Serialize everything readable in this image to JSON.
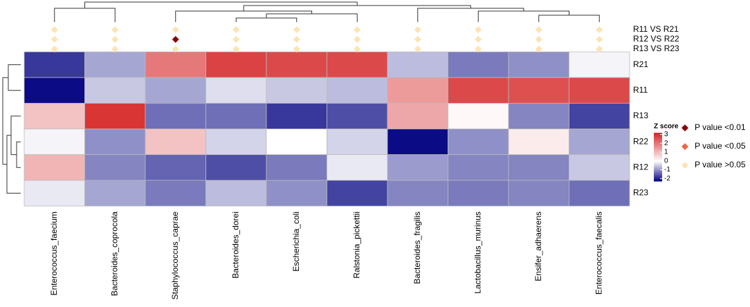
{
  "chart_data": {
    "type": "heatmap",
    "columns": [
      "Enterococcus_faecium",
      "Bacteroides_coprocola",
      "Staphylococcus_caprae",
      "Bacteroides_dorei",
      "Escherichia_coli",
      "Ralstonia_pickettii",
      "Bacteroides_fragilis",
      "Lactobacillus_murinus",
      "Ensifer_adhaerens",
      "Enterococcus_faecalis"
    ],
    "rows": [
      "R21",
      "R11",
      "R13",
      "R22",
      "R12",
      "R23"
    ],
    "z": [
      [
        -1.8,
        -0.8,
        2.0,
        2.8,
        2.7,
        2.7,
        -0.6,
        -1.2,
        -1.0,
        -0.1
      ],
      [
        -2.2,
        -0.5,
        -0.8,
        -0.3,
        -0.5,
        -0.6,
        1.5,
        2.7,
        2.6,
        2.7
      ],
      [
        0.9,
        3.0,
        -1.3,
        -1.3,
        -1.8,
        -1.6,
        1.3,
        0.1,
        -1.1,
        -1.7
      ],
      [
        -0.1,
        -1.0,
        0.9,
        -0.4,
        0.0,
        -0.4,
        -2.2,
        -1.0,
        0.3,
        -0.8
      ],
      [
        1.1,
        -1.1,
        -1.4,
        -1.6,
        -1.2,
        -0.2,
        -0.9,
        -1.1,
        -1.1,
        -0.5
      ],
      [
        -0.2,
        -0.8,
        -1.2,
        -0.6,
        -1.0,
        -1.7,
        -1.1,
        -1.2,
        -1.1,
        -1.3
      ]
    ],
    "colorscale": {
      "low": "#000080",
      "mid": "#ffffff",
      "high": "#d62728"
    },
    "zlim": [
      -2.3,
      3.2
    ],
    "colorbar_title": "Z score",
    "colorbar_ticks": [
      3,
      2,
      1,
      0,
      -1,
      -2
    ],
    "significance_legend": [
      {
        "label": "P value <0.01",
        "color": "#8b0000"
      },
      {
        "label": "P value <0.05",
        "color": "#e8674a"
      },
      {
        "label": "P value >0.05",
        "color": "#fde3b5"
      }
    ],
    "markers": [
      {
        "name": "R11 VS R21",
        "values": [
          2,
          2,
          2,
          2,
          2,
          2,
          2,
          2,
          2,
          2
        ]
      },
      {
        "name": "R12 VS R22",
        "values": [
          2,
          2,
          0,
          2,
          2,
          2,
          2,
          2,
          2,
          2
        ]
      },
      {
        "name": "R13 VS R23",
        "values": [
          2,
          2,
          2,
          2,
          2,
          2,
          2,
          2,
          2,
          2
        ]
      }
    ]
  }
}
